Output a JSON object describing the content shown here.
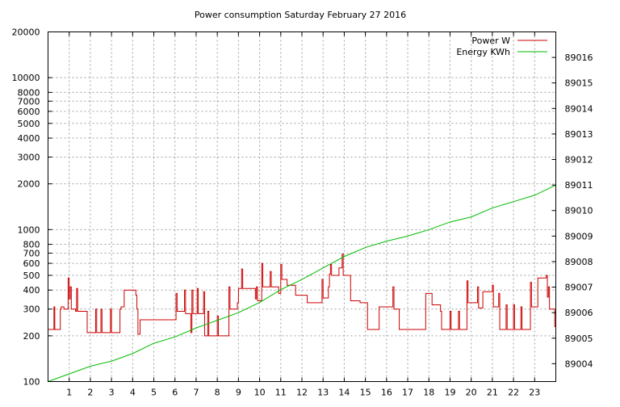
{
  "chart_data": {
    "type": "line",
    "title": "Power consumption Saturday February 27 2016",
    "xlabel": "",
    "ylabel": "",
    "y2label": "",
    "xlim": [
      0,
      24
    ],
    "ylim": [
      100,
      20000
    ],
    "yscale": "log",
    "y2lim": [
      89003.3,
      89017.0
    ],
    "grid": true,
    "legend_position": "top-right",
    "x_ticks": [
      1,
      2,
      3,
      4,
      5,
      6,
      7,
      8,
      9,
      10,
      11,
      12,
      13,
      14,
      15,
      16,
      17,
      18,
      19,
      20,
      21,
      22,
      23
    ],
    "y_ticks": [
      100,
      200,
      300,
      400,
      500,
      600,
      700,
      800,
      1000,
      2000,
      3000,
      4000,
      5000,
      6000,
      7000,
      8000,
      10000,
      20000
    ],
    "y_tick_labels": [
      "100",
      "200",
      "300",
      "400",
      "500",
      "600",
      "700",
      "800",
      "1000",
      "2000",
      "3000",
      "4000",
      "5000",
      "6000",
      "7000",
      "8000",
      "10000",
      "20000"
    ],
    "y2_ticks": [
      89004,
      89005,
      89006,
      89007,
      89008,
      89009,
      89010,
      89011,
      89012,
      89013,
      89014,
      89015,
      89016
    ],
    "series": [
      {
        "name": "Power W",
        "color": "#cc0000",
        "axis": "left",
        "step": true,
        "points": [
          [
            0,
            220
          ],
          [
            0.25,
            220
          ],
          [
            0.28,
            310
          ],
          [
            0.32,
            220
          ],
          [
            0.55,
            220
          ],
          [
            0.58,
            300
          ],
          [
            0.62,
            310
          ],
          [
            0.7,
            310
          ],
          [
            0.75,
            300
          ],
          [
            0.9,
            300
          ],
          [
            0.95,
            480
          ],
          [
            1.0,
            350
          ],
          [
            1.05,
            420
          ],
          [
            1.1,
            300
          ],
          [
            1.3,
            290
          ],
          [
            1.35,
            410
          ],
          [
            1.4,
            290
          ],
          [
            1.8,
            290
          ],
          [
            1.85,
            210
          ],
          [
            2.2,
            210
          ],
          [
            2.25,
            300
          ],
          [
            2.3,
            210
          ],
          [
            2.45,
            210
          ],
          [
            2.5,
            300
          ],
          [
            2.55,
            210
          ],
          [
            2.9,
            210
          ],
          [
            2.95,
            300
          ],
          [
            3.0,
            210
          ],
          [
            3.35,
            210
          ],
          [
            3.4,
            300
          ],
          [
            3.45,
            310
          ],
          [
            3.55,
            310
          ],
          [
            3.6,
            400
          ],
          [
            4.1,
            400
          ],
          [
            4.15,
            370
          ],
          [
            4.2,
            300
          ],
          [
            4.25,
            205
          ],
          [
            4.3,
            205
          ],
          [
            4.35,
            255
          ],
          [
            6.0,
            255
          ],
          [
            6.05,
            380
          ],
          [
            6.1,
            290
          ],
          [
            6.4,
            290
          ],
          [
            6.45,
            400
          ],
          [
            6.5,
            280
          ],
          [
            6.7,
            280
          ],
          [
            6.75,
            210
          ],
          [
            6.8,
            400
          ],
          [
            6.85,
            280
          ],
          [
            7.0,
            280
          ],
          [
            7.05,
            410
          ],
          [
            7.1,
            280
          ],
          [
            7.3,
            280
          ],
          [
            7.35,
            390
          ],
          [
            7.4,
            200
          ],
          [
            7.5,
            200
          ],
          [
            7.55,
            290
          ],
          [
            7.6,
            200
          ],
          [
            7.95,
            200
          ],
          [
            8.0,
            270
          ],
          [
            8.05,
            200
          ],
          [
            8.5,
            200
          ],
          [
            8.55,
            420
          ],
          [
            8.6,
            300
          ],
          [
            8.9,
            300
          ],
          [
            8.95,
            330
          ],
          [
            9.0,
            410
          ],
          [
            9.15,
            550
          ],
          [
            9.2,
            410
          ],
          [
            9.75,
            410
          ],
          [
            9.8,
            350
          ],
          [
            9.85,
            420
          ],
          [
            9.9,
            340
          ],
          [
            10.05,
            340
          ],
          [
            10.1,
            600
          ],
          [
            10.15,
            420
          ],
          [
            10.45,
            420
          ],
          [
            10.5,
            530
          ],
          [
            10.55,
            420
          ],
          [
            10.85,
            420
          ],
          [
            10.9,
            380
          ],
          [
            11.0,
            590
          ],
          [
            11.05,
            470
          ],
          [
            11.25,
            470
          ],
          [
            11.3,
            430
          ],
          [
            11.65,
            430
          ],
          [
            11.7,
            370
          ],
          [
            12.2,
            370
          ],
          [
            12.25,
            330
          ],
          [
            12.9,
            330
          ],
          [
            12.95,
            470
          ],
          [
            13.0,
            355
          ],
          [
            13.2,
            355
          ],
          [
            13.25,
            420
          ],
          [
            13.3,
            510
          ],
          [
            13.35,
            590
          ],
          [
            13.4,
            500
          ],
          [
            13.7,
            500
          ],
          [
            13.75,
            560
          ],
          [
            13.9,
            690
          ],
          [
            13.95,
            500
          ],
          [
            14.25,
            500
          ],
          [
            14.3,
            340
          ],
          [
            14.7,
            340
          ],
          [
            14.75,
            330
          ],
          [
            15.05,
            330
          ],
          [
            15.1,
            220
          ],
          [
            15.6,
            220
          ],
          [
            15.65,
            310
          ],
          [
            16.25,
            310
          ],
          [
            16.3,
            420
          ],
          [
            16.35,
            300
          ],
          [
            16.55,
            300
          ],
          [
            16.6,
            220
          ],
          [
            17.8,
            220
          ],
          [
            17.85,
            380
          ],
          [
            17.9,
            380
          ],
          [
            18.1,
            380
          ],
          [
            18.15,
            320
          ],
          [
            18.5,
            320
          ],
          [
            18.55,
            290
          ],
          [
            18.6,
            220
          ],
          [
            18.95,
            220
          ],
          [
            19.0,
            290
          ],
          [
            19.05,
            220
          ],
          [
            19.35,
            220
          ],
          [
            19.4,
            290
          ],
          [
            19.45,
            220
          ],
          [
            19.75,
            220
          ],
          [
            19.8,
            460
          ],
          [
            19.85,
            330
          ],
          [
            20.25,
            330
          ],
          [
            20.3,
            420
          ],
          [
            20.35,
            305
          ],
          [
            20.5,
            305
          ],
          [
            20.55,
            390
          ],
          [
            20.95,
            390
          ],
          [
            21.0,
            430
          ],
          [
            21.05,
            310
          ],
          [
            21.25,
            310
          ],
          [
            21.3,
            380
          ],
          [
            21.35,
            220
          ],
          [
            21.6,
            220
          ],
          [
            21.65,
            320
          ],
          [
            21.7,
            220
          ],
          [
            21.95,
            220
          ],
          [
            22.0,
            320
          ],
          [
            22.05,
            220
          ],
          [
            22.3,
            220
          ],
          [
            22.35,
            310
          ],
          [
            22.4,
            220
          ],
          [
            22.75,
            220
          ],
          [
            22.8,
            450
          ],
          [
            22.85,
            310
          ],
          [
            23.1,
            310
          ],
          [
            23.15,
            480
          ],
          [
            23.5,
            480
          ],
          [
            23.55,
            500
          ],
          [
            23.6,
            360
          ],
          [
            23.65,
            420
          ],
          [
            23.7,
            300
          ],
          [
            23.9,
            300
          ],
          [
            23.95,
            230
          ],
          [
            24.0,
            230
          ]
        ]
      },
      {
        "name": "Energy KWh",
        "color": "#00bb00",
        "axis": "right",
        "step": false,
        "points": [
          [
            0,
            89003.3
          ],
          [
            1,
            89003.6
          ],
          [
            2,
            89003.9
          ],
          [
            3,
            89004.1
          ],
          [
            4,
            89004.4
          ],
          [
            5,
            89004.8
          ],
          [
            6,
            89005.05
          ],
          [
            7,
            89005.4
          ],
          [
            8,
            89005.7
          ],
          [
            9,
            89006.0
          ],
          [
            10,
            89006.4
          ],
          [
            11,
            89006.9
          ],
          [
            12,
            89007.3
          ],
          [
            13,
            89007.75
          ],
          [
            14,
            89008.2
          ],
          [
            15,
            89008.55
          ],
          [
            16,
            89008.8
          ],
          [
            17,
            89009.0
          ],
          [
            18,
            89009.25
          ],
          [
            19,
            89009.55
          ],
          [
            20,
            89009.75
          ],
          [
            21,
            89010.1
          ],
          [
            22,
            89010.35
          ],
          [
            23,
            89010.6
          ],
          [
            24,
            89011.0
          ]
        ]
      }
    ]
  }
}
